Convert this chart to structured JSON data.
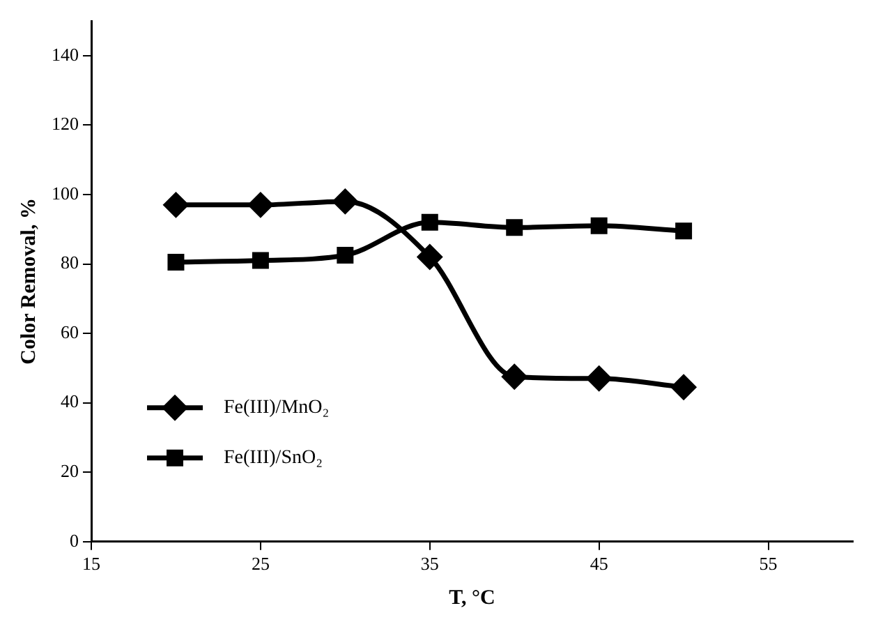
{
  "chart_data": {
    "type": "line",
    "xlabel": "T, °C",
    "ylabel": "Color Removal, %",
    "x": [
      20,
      25,
      30,
      35,
      40,
      45,
      50
    ],
    "series": [
      {
        "name": "Fe(III)/MnO₂",
        "color": "#000000",
        "marker": "diamond",
        "values": [
          97,
          97,
          98,
          82,
          47.5,
          47,
          44.5
        ]
      },
      {
        "name": "Fe(III)/SnO₂",
        "color": "#000000",
        "marker": "square",
        "values": [
          80.5,
          81,
          82.5,
          92,
          90.5,
          91,
          89.5
        ]
      }
    ],
    "xlim": [
      15,
      60
    ],
    "xticks": [
      15,
      25,
      35,
      45,
      55
    ],
    "ylim": [
      0,
      150
    ],
    "yticks": [
      0,
      20,
      40,
      60,
      80,
      100,
      120,
      140
    ],
    "grid": false,
    "legend": "bottom left",
    "line_style": "solid"
  }
}
